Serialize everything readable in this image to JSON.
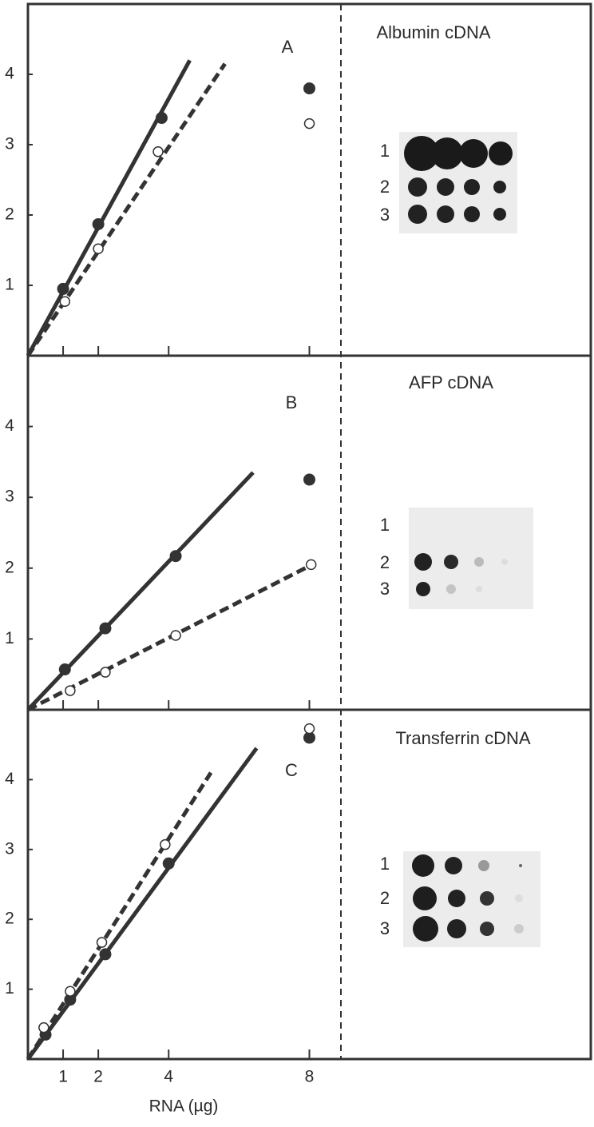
{
  "chart_data": [
    {
      "type": "scatter",
      "title": "Albumin cDNA",
      "panel": "A",
      "xlim": [
        0,
        16
      ],
      "ylim": [
        0,
        5
      ],
      "xticks": [
        1,
        2,
        4,
        8
      ],
      "yticks": [
        1,
        2,
        3,
        4
      ],
      "xtick_labels": false,
      "blot_rows": [
        "1",
        "2",
        "3"
      ],
      "series": [
        {
          "marker": "filled",
          "color": "#333333",
          "x": [
            1,
            2,
            3.8,
            8
          ],
          "values": [
            0.95,
            1.87,
            3.38,
            3.8
          ]
        },
        {
          "marker": "open",
          "color": "#333333",
          "x": [
            1.05,
            2,
            3.7,
            8
          ],
          "values": [
            0.77,
            1.52,
            2.9,
            3.3
          ]
        }
      ],
      "fits": [
        {
          "dashed": false,
          "color": "#333333",
          "x": [
            0,
            4.6
          ],
          "values": [
            0,
            4.2
          ]
        },
        {
          "dashed": true,
          "color": "#333333",
          "x": [
            0,
            5.6
          ],
          "values": [
            0,
            4.15
          ]
        }
      ]
    },
    {
      "type": "scatter",
      "title": "AFP cDNA",
      "panel": "B",
      "xlim": [
        0,
        16
      ],
      "ylim": [
        0,
        5
      ],
      "xticks": [
        1,
        2,
        4,
        8
      ],
      "yticks": [
        1,
        2,
        3,
        4
      ],
      "xtick_labels": false,
      "blot_rows": [
        "1",
        "2",
        "3"
      ],
      "series": [
        {
          "marker": "filled",
          "color": "#333333",
          "x": [
            1.05,
            2.2,
            4.2,
            8
          ],
          "values": [
            0.57,
            1.15,
            2.17,
            3.25
          ]
        },
        {
          "marker": "open",
          "color": "#333333",
          "x": [
            1.2,
            2.2,
            4.2,
            8.05
          ],
          "values": [
            0.27,
            0.53,
            1.05,
            2.05
          ]
        }
      ],
      "fits": [
        {
          "dashed": false,
          "color": "#333333",
          "x": [
            0,
            6.4
          ],
          "values": [
            0,
            3.35
          ]
        },
        {
          "dashed": true,
          "color": "#333333",
          "x": [
            0,
            8
          ],
          "values": [
            0,
            2.03
          ]
        }
      ]
    },
    {
      "type": "scatter",
      "title": "Transferrin cDNA",
      "panel": "C",
      "xlabel": "RNA (µg)",
      "xlim": [
        0,
        16
      ],
      "ylim": [
        0,
        5
      ],
      "xticks": [
        1,
        2,
        4,
        8
      ],
      "yticks": [
        1,
        2,
        3,
        4
      ],
      "xtick_labels": true,
      "blot_rows": [
        "1",
        "2",
        "3"
      ],
      "series": [
        {
          "marker": "filled",
          "color": "#333333",
          "x": [
            0.5,
            1.2,
            2.2,
            4,
            8
          ],
          "values": [
            0.35,
            0.85,
            1.5,
            2.8,
            4.6
          ]
        },
        {
          "marker": "open",
          "color": "#333333",
          "x": [
            0.45,
            1.2,
            2.1,
            3.9,
            8
          ],
          "values": [
            0.45,
            0.97,
            1.67,
            3.07,
            4.73
          ]
        }
      ],
      "fits": [
        {
          "dashed": false,
          "color": "#333333",
          "x": [
            0,
            6.5
          ],
          "values": [
            0,
            4.45
          ]
        },
        {
          "dashed": true,
          "color": "#333333",
          "x": [
            0,
            5.2
          ],
          "values": [
            0,
            4.1
          ]
        }
      ]
    }
  ]
}
